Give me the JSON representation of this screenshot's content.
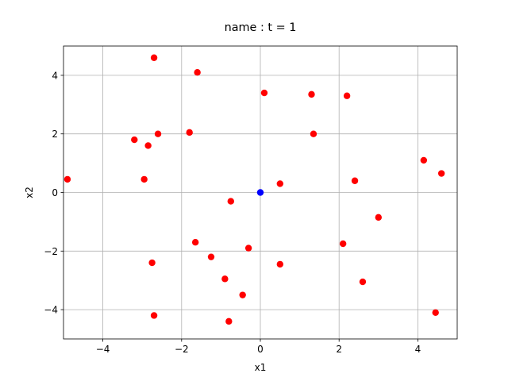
{
  "chart_data": {
    "type": "scatter",
    "title": "name : t =  1",
    "xlabel": "x1",
    "ylabel": "x2",
    "xlim": [
      -5,
      5
    ],
    "ylim": [
      -5,
      5
    ],
    "xticks": [
      -4,
      -2,
      0,
      2,
      4
    ],
    "yticks": [
      -4,
      -2,
      0,
      2,
      4
    ],
    "grid": true,
    "colors": {
      "primary": "#ff0000",
      "highlight": "#0000ff",
      "grid": "#b0b0b0",
      "axes": "#000000"
    },
    "series": [
      {
        "color": "#ff0000",
        "points": [
          {
            "x": -4.9,
            "y": 0.45
          },
          {
            "x": -2.7,
            "y": 4.6
          },
          {
            "x": -1.6,
            "y": 4.1
          },
          {
            "x": 0.1,
            "y": 3.4
          },
          {
            "x": 1.3,
            "y": 3.35
          },
          {
            "x": 2.2,
            "y": 3.3
          },
          {
            "x": -3.2,
            "y": 1.8
          },
          {
            "x": -2.85,
            "y": 1.6
          },
          {
            "x": -2.6,
            "y": 2.0
          },
          {
            "x": -1.8,
            "y": 2.05
          },
          {
            "x": 1.35,
            "y": 2.0
          },
          {
            "x": 4.15,
            "y": 1.1
          },
          {
            "x": 4.6,
            "y": 0.65
          },
          {
            "x": -2.95,
            "y": 0.45
          },
          {
            "x": 0.5,
            "y": 0.3
          },
          {
            "x": 2.4,
            "y": 0.4
          },
          {
            "x": -0.75,
            "y": -0.3
          },
          {
            "x": 3.0,
            "y": -0.85
          },
          {
            "x": -1.65,
            "y": -1.7
          },
          {
            "x": 2.1,
            "y": -1.75
          },
          {
            "x": -0.3,
            "y": -1.9
          },
          {
            "x": -1.25,
            "y": -2.2
          },
          {
            "x": -2.75,
            "y": -2.4
          },
          {
            "x": 0.5,
            "y": -2.45
          },
          {
            "x": -0.9,
            "y": -2.95
          },
          {
            "x": 2.6,
            "y": -3.05
          },
          {
            "x": -0.45,
            "y": -3.5
          },
          {
            "x": -2.7,
            "y": -4.2
          },
          {
            "x": -0.8,
            "y": -4.4
          },
          {
            "x": 4.45,
            "y": -4.1
          }
        ]
      },
      {
        "color": "#0000ff",
        "points": [
          {
            "x": 0.0,
            "y": 0.0
          }
        ]
      }
    ]
  }
}
